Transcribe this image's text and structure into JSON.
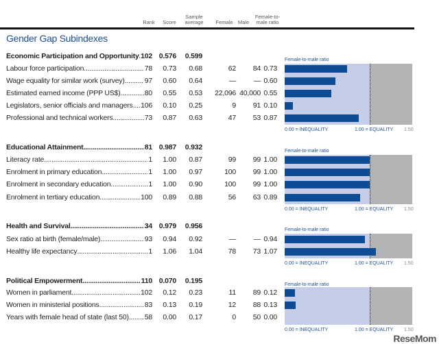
{
  "columns": {
    "rank": "Rank",
    "score": "Score",
    "sample": "Sample average",
    "female": "Female",
    "male": "Male",
    "ratio": "Female-to-male ratio"
  },
  "title": "Gender Gap Subindexes",
  "chart_labels": {
    "caption": "Female-to-male ratio",
    "inequality": "0.00 = INEQUALITY",
    "equality": "1.00 = EQUALITY",
    "max": "1.50"
  },
  "colors": {
    "bar": "#0d4c94",
    "panel": "#c5cde8",
    "beyond_equality": "#b2b3b5",
    "title": "#1d4e8f"
  },
  "sections": [
    {
      "name": "Economic Participation and Opportunity",
      "rank": "102",
      "score": "0.576",
      "sample": "0.599",
      "rows": [
        {
          "label": "Labour force participation",
          "rank": "78",
          "score": "0.73",
          "sample": "0.68",
          "female": "62",
          "male": "84",
          "ratio": "0.73",
          "value": 0.73
        },
        {
          "label": "Wage equality for similar work (survey)",
          "rank": "97",
          "score": "0.60",
          "sample": "0.64",
          "female": "—",
          "male": "—",
          "ratio": "0.60",
          "value": 0.6
        },
        {
          "label": "Estimated earned income (PPP US$)",
          "rank": "80",
          "score": "0.55",
          "sample": "0.53",
          "female": "22,096",
          "male": "40,000",
          "ratio": "0.55",
          "value": 0.55
        },
        {
          "label": "Legislators, senior officials and managers",
          "rank": "106",
          "score": "0.10",
          "sample": "0.25",
          "female": "9",
          "male": "91",
          "ratio": "0.10",
          "value": 0.1
        },
        {
          "label": "Professional and technical workers",
          "rank": "73",
          "score": "0.87",
          "sample": "0.63",
          "female": "47",
          "male": "53",
          "ratio": "0.87",
          "value": 0.87
        }
      ]
    },
    {
      "name": "Educational Attainment",
      "rank": "81",
      "score": "0.987",
      "sample": "0.932",
      "rows": [
        {
          "label": "Literacy rate",
          "rank": "1",
          "score": "1.00",
          "sample": "0.87",
          "female": "99",
          "male": "99",
          "ratio": "1.00",
          "value": 1.0
        },
        {
          "label": "Enrolment in primary education",
          "rank": "1",
          "score": "1.00",
          "sample": "0.97",
          "female": "100",
          "male": "99",
          "ratio": "1.00",
          "value": 1.0
        },
        {
          "label": "Enrolment in secondary education",
          "rank": "1",
          "score": "1.00",
          "sample": "0.90",
          "female": "100",
          "male": "99",
          "ratio": "1.00",
          "value": 1.0
        },
        {
          "label": "Enrolment in tertiary education",
          "rank": "100",
          "score": "0.89",
          "sample": "0.88",
          "female": "56",
          "male": "63",
          "ratio": "0.89",
          "value": 0.89
        }
      ]
    },
    {
      "name": "Health and Survival",
      "rank": "34",
      "score": "0.979",
      "sample": "0.956",
      "rows": [
        {
          "label": "Sex ratio at birth (female/male)",
          "rank": "93",
          "score": "0.94",
          "sample": "0.92",
          "female": "—",
          "male": "—",
          "ratio": "0.94",
          "value": 0.94
        },
        {
          "label": "Healthy life expectancy",
          "rank": "1",
          "score": "1.06",
          "sample": "1.04",
          "female": "78",
          "male": "73",
          "ratio": "1.07",
          "value": 1.07
        }
      ]
    },
    {
      "name": "Political Empowerment",
      "rank": "110",
      "score": "0.070",
      "sample": "0.195",
      "rows": [
        {
          "label": "Women in parliament",
          "rank": "102",
          "score": "0.12",
          "sample": "0.23",
          "female": "11",
          "male": "89",
          "ratio": "0.12",
          "value": 0.12
        },
        {
          "label": "Women in ministerial positions",
          "rank": "83",
          "score": "0.13",
          "sample": "0.19",
          "female": "12",
          "male": "88",
          "ratio": "0.13",
          "value": 0.13
        },
        {
          "label": "Years with female head of state (last 50)",
          "rank": "58",
          "score": "0.00",
          "sample": "0.17",
          "female": "0",
          "male": "50",
          "ratio": "0.00",
          "value": 0.0
        }
      ]
    }
  ],
  "watermark": "ReseMom"
}
